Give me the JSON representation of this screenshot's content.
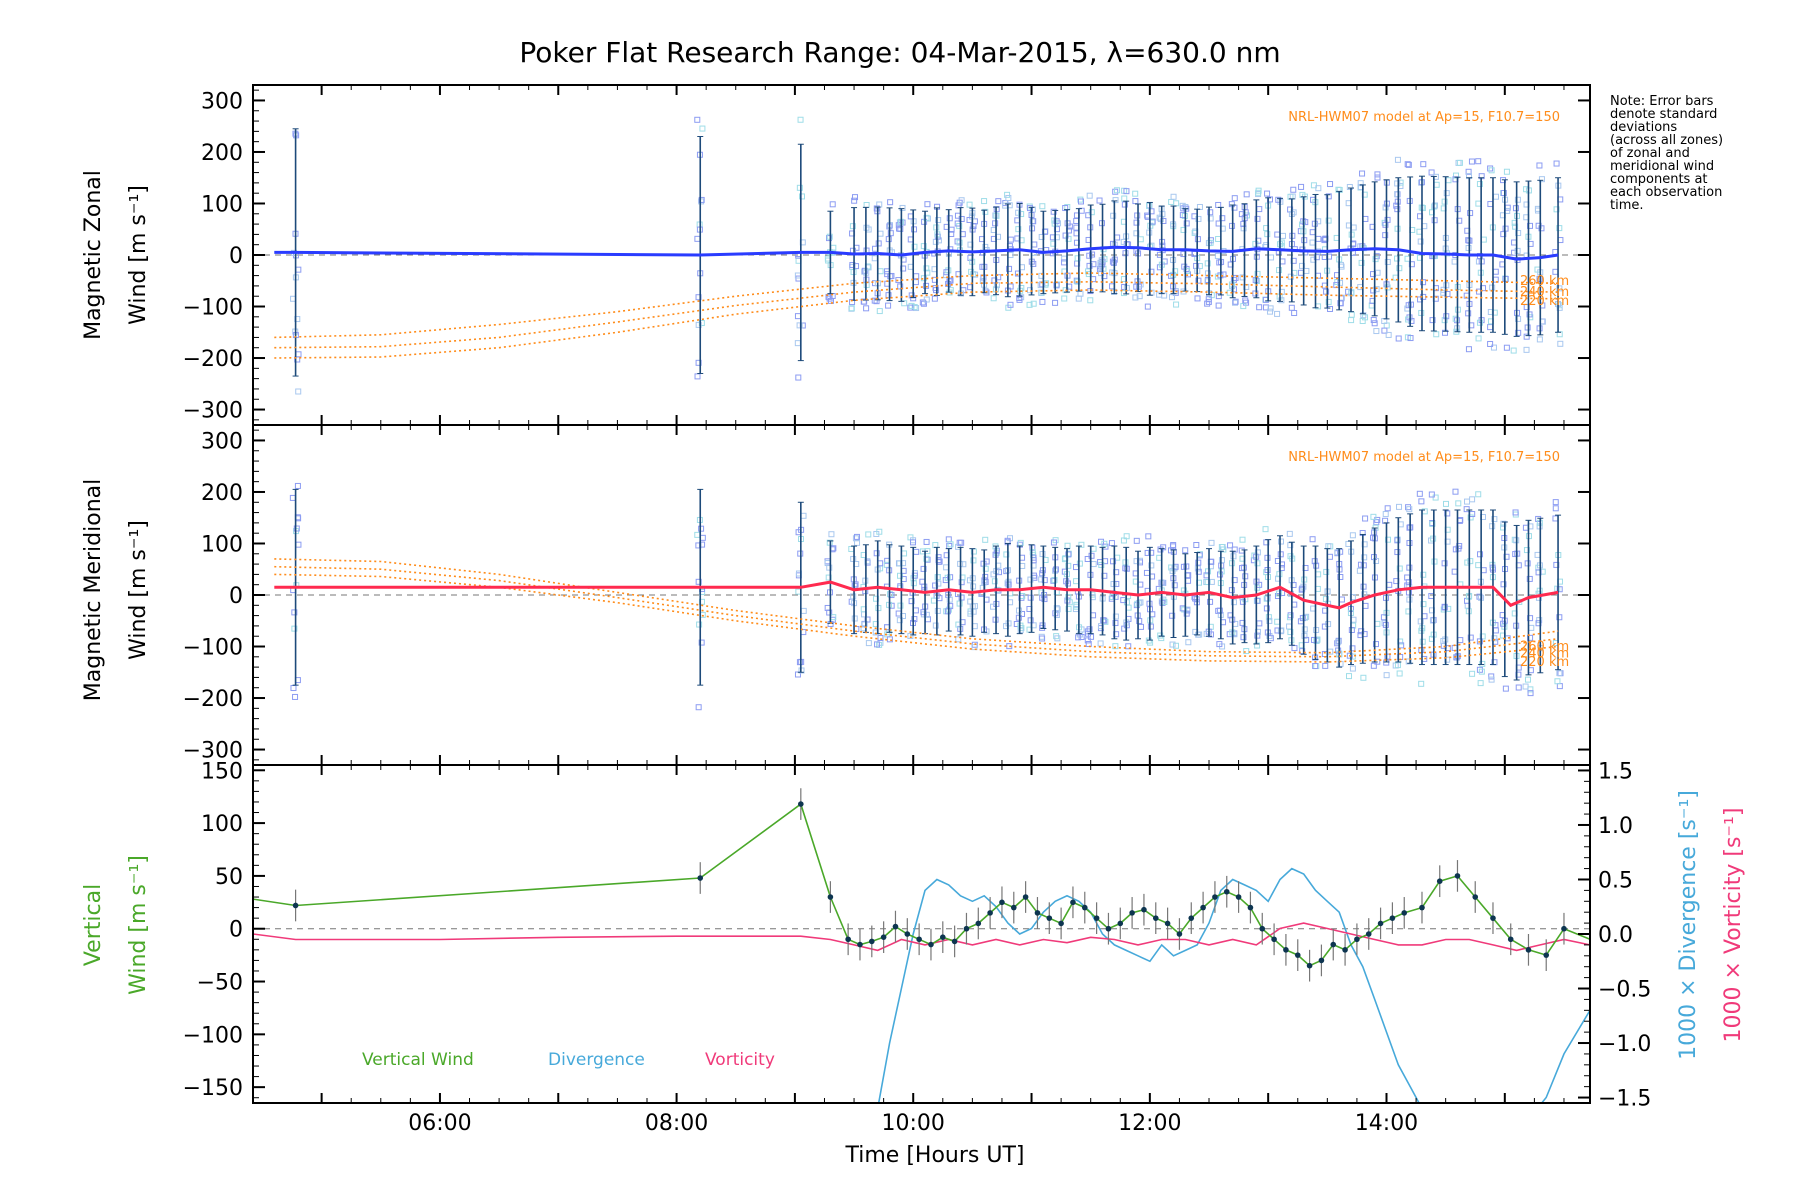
{
  "chart_data": [
    {
      "type": "line",
      "title": "Poker Flat Research Range: 04-Mar-2015, λ=630.0 nm",
      "panel": "zonal",
      "ylabel_line1": "Magnetic Zonal",
      "ylabel_line2": "Wind [m s⁻¹]",
      "ylim": [
        -330,
        330
      ],
      "yticks": [
        300,
        200,
        100,
        0,
        -100,
        -200,
        -300
      ],
      "model_label": "NRL-HWM07 model at Ap=15, F10.7=150",
      "altitude_labels": [
        "260 km",
        "240 km",
        "220 km"
      ],
      "note": [
        "Note: Error bars",
        "denote standard",
        "deviations",
        "(across all zones)",
        "of zonal and",
        "meridional wind",
        "components at",
        "each observation",
        "time."
      ],
      "mean_series": {
        "name": "Zonal mean",
        "color": "#2a3cff",
        "x": [
          4.6,
          4.78,
          8.2,
          9.05,
          9.3,
          9.5,
          9.7,
          9.9,
          10.1,
          10.3,
          10.5,
          10.7,
          10.9,
          11.1,
          11.3,
          11.5,
          11.7,
          11.9,
          12.1,
          12.3,
          12.5,
          12.7,
          12.9,
          13.1,
          13.3,
          13.5,
          13.7,
          13.9,
          14.1,
          14.3,
          14.5,
          14.7,
          14.9,
          15.1,
          15.3,
          15.45
        ],
        "y": [
          5,
          5,
          0,
          5,
          5,
          2,
          3,
          0,
          5,
          8,
          6,
          8,
          10,
          5,
          8,
          12,
          15,
          14,
          10,
          10,
          8,
          7,
          12,
          10,
          8,
          7,
          10,
          12,
          10,
          3,
          2,
          0,
          0,
          -8,
          -5,
          0
        ]
      },
      "obs_times": [
        4.78,
        8.2,
        9.05,
        9.3,
        9.5,
        9.6,
        9.7,
        9.8,
        9.9,
        10.0,
        10.1,
        10.2,
        10.3,
        10.4,
        10.5,
        10.6,
        10.7,
        10.8,
        10.9,
        11.0,
        11.1,
        11.2,
        11.3,
        11.4,
        11.5,
        11.6,
        11.7,
        11.8,
        11.9,
        12.0,
        12.1,
        12.2,
        12.3,
        12.4,
        12.5,
        12.6,
        12.7,
        12.8,
        12.9,
        13.0,
        13.1,
        13.2,
        13.3,
        13.4,
        13.5,
        13.6,
        13.7,
        13.8,
        13.9,
        14.0,
        14.1,
        14.2,
        14.3,
        14.4,
        14.5,
        14.6,
        14.7,
        14.8,
        14.9,
        15.0,
        15.1,
        15.2,
        15.3,
        15.45
      ],
      "error_half_width": [
        240,
        230,
        210,
        80,
        90,
        90,
        90,
        90,
        90,
        85,
        80,
        85,
        80,
        85,
        85,
        80,
        85,
        90,
        90,
        85,
        80,
        80,
        80,
        80,
        85,
        85,
        90,
        90,
        85,
        90,
        85,
        85,
        80,
        80,
        85,
        85,
        90,
        90,
        95,
        100,
        100,
        100,
        105,
        110,
        110,
        115,
        120,
        125,
        130,
        135,
        140,
        145,
        150,
        150,
        150,
        150,
        150,
        150,
        150,
        150,
        150,
        150,
        150,
        150
      ],
      "model_curves": [
        {
          "name": "260 km",
          "x": [
            4.6,
            5.5,
            6.5,
            7.5,
            8.5,
            9.5,
            10.5,
            11.5,
            12.5,
            13.5,
            14.5,
            15.45
          ],
          "y": [
            -160,
            -155,
            -135,
            -110,
            -80,
            -55,
            -40,
            -35,
            -40,
            -45,
            -50,
            -55
          ]
        },
        {
          "name": "240 km",
          "x": [
            4.6,
            5.5,
            6.5,
            7.5,
            8.5,
            9.5,
            10.5,
            11.5,
            12.5,
            13.5,
            14.5,
            15.45
          ],
          "y": [
            -180,
            -178,
            -160,
            -130,
            -98,
            -72,
            -55,
            -52,
            -56,
            -62,
            -68,
            -72
          ]
        },
        {
          "name": "220 km",
          "x": [
            4.6,
            5.5,
            6.5,
            7.5,
            8.5,
            9.5,
            10.5,
            11.5,
            12.5,
            13.5,
            14.5,
            15.45
          ],
          "y": [
            -200,
            -198,
            -180,
            -150,
            -115,
            -88,
            -72,
            -68,
            -72,
            -78,
            -82,
            -85
          ]
        }
      ]
    },
    {
      "type": "line",
      "panel": "meridional",
      "ylabel_line1": "Magnetic Meridional",
      "ylabel_line2": "Wind [m s⁻¹]",
      "ylim": [
        -330,
        330
      ],
      "yticks": [
        300,
        200,
        100,
        0,
        -100,
        -200,
        -300
      ],
      "model_label": "NRL-HWM07 model at Ap=15, F10.7=150",
      "altitude_labels": [
        "260 km",
        "240 km",
        "220 km"
      ],
      "mean_series": {
        "name": "Meridional mean",
        "color": "#ff2a4f",
        "x": [
          4.6,
          4.78,
          8.2,
          9.05,
          9.3,
          9.5,
          9.7,
          9.9,
          10.1,
          10.3,
          10.5,
          10.7,
          10.9,
          11.1,
          11.3,
          11.5,
          11.7,
          11.9,
          12.1,
          12.3,
          12.5,
          12.7,
          12.9,
          13.1,
          13.3,
          13.5,
          13.6,
          13.7,
          13.9,
          14.1,
          14.3,
          14.5,
          14.7,
          14.9,
          15.05,
          15.2,
          15.45
        ],
        "y": [
          15,
          15,
          15,
          15,
          25,
          10,
          15,
          10,
          5,
          10,
          5,
          10,
          10,
          15,
          10,
          10,
          5,
          0,
          5,
          0,
          5,
          -5,
          0,
          15,
          -10,
          -20,
          -25,
          -15,
          0,
          10,
          15,
          15,
          15,
          15,
          -20,
          -5,
          5
        ]
      },
      "obs_times": [
        4.78,
        8.2,
        9.05,
        9.3,
        9.5,
        9.6,
        9.7,
        9.8,
        9.9,
        10.0,
        10.1,
        10.2,
        10.3,
        10.4,
        10.5,
        10.6,
        10.7,
        10.8,
        10.9,
        11.0,
        11.1,
        11.2,
        11.3,
        11.4,
        11.5,
        11.6,
        11.7,
        11.8,
        11.9,
        12.0,
        12.1,
        12.2,
        12.3,
        12.4,
        12.5,
        12.6,
        12.7,
        12.8,
        12.9,
        13.0,
        13.1,
        13.2,
        13.3,
        13.4,
        13.5,
        13.6,
        13.7,
        13.8,
        13.9,
        14.0,
        14.1,
        14.2,
        14.3,
        14.4,
        14.5,
        14.6,
        14.7,
        14.8,
        14.9,
        15.0,
        15.1,
        15.2,
        15.3,
        15.45
      ],
      "error_half_width": [
        190,
        190,
        165,
        80,
        85,
        85,
        90,
        85,
        85,
        85,
        80,
        85,
        80,
        85,
        85,
        80,
        85,
        90,
        85,
        85,
        80,
        80,
        80,
        85,
        85,
        85,
        90,
        90,
        85,
        90,
        85,
        85,
        80,
        80,
        85,
        85,
        90,
        90,
        95,
        100,
        100,
        100,
        105,
        110,
        110,
        115,
        120,
        125,
        130,
        135,
        140,
        145,
        150,
        150,
        150,
        150,
        150,
        150,
        150,
        150,
        150,
        150,
        150,
        150
      ],
      "model_curves": [
        {
          "name": "260 km",
          "x": [
            4.6,
            5.5,
            6.5,
            7.5,
            8.5,
            9.5,
            10.5,
            11.5,
            12.5,
            13.5,
            14.5,
            15.45
          ],
          "y": [
            70,
            65,
            40,
            5,
            -30,
            -60,
            -85,
            -100,
            -110,
            -112,
            -100,
            -70
          ]
        },
        {
          "name": "240 km",
          "x": [
            4.6,
            5.5,
            6.5,
            7.5,
            8.5,
            9.5,
            10.5,
            11.5,
            12.5,
            13.5,
            14.5,
            15.45
          ],
          "y": [
            55,
            50,
            28,
            -5,
            -40,
            -70,
            -95,
            -110,
            -118,
            -120,
            -110,
            -85
          ]
        },
        {
          "name": "220 km",
          "x": [
            4.6,
            5.5,
            6.5,
            7.5,
            8.5,
            9.5,
            10.5,
            11.5,
            12.5,
            13.5,
            14.5,
            15.45
          ],
          "y": [
            40,
            36,
            15,
            -15,
            -50,
            -80,
            -105,
            -120,
            -128,
            -130,
            -122,
            -100
          ]
        }
      ]
    },
    {
      "type": "line",
      "panel": "vertical",
      "ylabel_left_line1": "Vertical",
      "ylabel_left_line2": "Wind [m s⁻¹]",
      "ylabel_right_div": "1000 × Divergence [s⁻¹]",
      "ylabel_right_vort": "1000 × Vorticity [s⁻¹]",
      "ylim": [
        -165,
        155
      ],
      "yticks": [
        150,
        100,
        50,
        0,
        -50,
        -100,
        -150
      ],
      "y2lim": [
        -1.55,
        1.55
      ],
      "y2ticks": [
        "1.5",
        "1.0",
        "0.5",
        "0.0",
        "−0.5",
        "−1.0",
        "−1.5"
      ],
      "y2tick_values": [
        1.5,
        1.0,
        0.5,
        0.0,
        -0.5,
        -1.0,
        -1.5
      ],
      "xlabel": "Time [Hours UT]",
      "xticks": [
        "06:00",
        "08:00",
        "10:00",
        "12:00",
        "14:00"
      ],
      "xtick_values": [
        6,
        8,
        10,
        12,
        14
      ],
      "xlim": [
        4.42,
        15.72
      ],
      "legend": [
        "Vertical Wind",
        "Divergence",
        "Vorticity"
      ],
      "series": [
        {
          "name": "Vertical Wind",
          "color": "#4aa829",
          "x": [
            4.42,
            4.78,
            8.2,
            9.05,
            9.3,
            9.45,
            9.55,
            9.65,
            9.75,
            9.85,
            9.95,
            10.05,
            10.15,
            10.25,
            10.35,
            10.45,
            10.55,
            10.65,
            10.75,
            10.85,
            10.95,
            11.05,
            11.15,
            11.25,
            11.35,
            11.45,
            11.55,
            11.65,
            11.75,
            11.85,
            11.95,
            12.05,
            12.15,
            12.25,
            12.35,
            12.45,
            12.55,
            12.65,
            12.75,
            12.85,
            12.95,
            13.05,
            13.15,
            13.25,
            13.35,
            13.45,
            13.55,
            13.65,
            13.75,
            13.85,
            13.95,
            14.05,
            14.15,
            14.3,
            14.45,
            14.6,
            14.75,
            14.9,
            15.05,
            15.2,
            15.35,
            15.5,
            15.72
          ],
          "y": [
            28,
            22,
            48,
            118,
            30,
            -10,
            -15,
            -12,
            -8,
            2,
            -5,
            -10,
            -15,
            -8,
            -12,
            0,
            5,
            15,
            25,
            20,
            30,
            15,
            10,
            5,
            25,
            20,
            10,
            0,
            5,
            15,
            18,
            10,
            5,
            -5,
            10,
            20,
            30,
            35,
            30,
            20,
            0,
            -10,
            -20,
            -25,
            -35,
            -30,
            -15,
            -20,
            -10,
            -5,
            5,
            10,
            15,
            20,
            45,
            50,
            30,
            10,
            -10,
            -20,
            -25,
            0,
            -10
          ]
        },
        {
          "name": "Divergence",
          "color": "#47a9da",
          "x": [
            9.6,
            9.7,
            9.8,
            9.9,
            10.0,
            10.1,
            10.2,
            10.3,
            10.4,
            10.5,
            10.6,
            10.7,
            10.8,
            10.9,
            11.0,
            11.1,
            11.2,
            11.3,
            11.4,
            11.5,
            11.6,
            11.7,
            11.8,
            11.9,
            12.0,
            12.1,
            12.2,
            12.3,
            12.4,
            12.5,
            12.6,
            12.7,
            12.8,
            12.9,
            13.0,
            13.1,
            13.2,
            13.3,
            13.4,
            13.5,
            13.6,
            13.7,
            13.8,
            13.9,
            14.0,
            14.1,
            14.2,
            14.35,
            15.2,
            15.35,
            15.5,
            15.72
          ],
          "y": [
            -2.0,
            -1.6,
            -1.0,
            -0.5,
            0.0,
            0.4,
            0.5,
            0.45,
            0.35,
            0.3,
            0.35,
            0.25,
            0.1,
            0.0,
            0.05,
            0.2,
            0.3,
            0.35,
            0.3,
            0.2,
            0.0,
            -0.1,
            -0.15,
            -0.2,
            -0.25,
            -0.1,
            -0.2,
            -0.15,
            -0.1,
            0.1,
            0.4,
            0.5,
            0.45,
            0.4,
            0.3,
            0.5,
            0.6,
            0.55,
            0.4,
            0.3,
            0.2,
            -0.1,
            -0.3,
            -0.6,
            -0.9,
            -1.2,
            -1.4,
            -1.7,
            -1.7,
            -1.5,
            -1.1,
            -0.7
          ]
        },
        {
          "name": "Vorticity",
          "color": "#f03a7a",
          "x": [
            4.42,
            4.78,
            6.0,
            7.0,
            8.0,
            8.2,
            9.05,
            9.3,
            9.5,
            9.7,
            9.9,
            10.1,
            10.3,
            10.5,
            10.7,
            10.9,
            11.1,
            11.3,
            11.5,
            11.7,
            11.9,
            12.1,
            12.3,
            12.5,
            12.7,
            12.9,
            13.1,
            13.3,
            13.5,
            13.7,
            13.9,
            14.1,
            14.3,
            14.5,
            14.7,
            14.9,
            15.1,
            15.3,
            15.5,
            15.72
          ],
          "y": [
            0.0,
            -0.05,
            -0.05,
            -0.03,
            -0.02,
            -0.02,
            -0.02,
            -0.05,
            -0.1,
            -0.15,
            -0.05,
            -0.1,
            -0.05,
            -0.1,
            -0.05,
            -0.1,
            -0.05,
            -0.08,
            -0.03,
            -0.05,
            -0.1,
            -0.05,
            -0.05,
            -0.1,
            -0.05,
            -0.1,
            0.05,
            0.1,
            0.05,
            0.0,
            -0.05,
            -0.1,
            -0.1,
            -0.05,
            -0.05,
            -0.1,
            -0.15,
            -0.1,
            -0.05,
            -0.1
          ]
        }
      ],
      "vertical_error": 15
    }
  ]
}
